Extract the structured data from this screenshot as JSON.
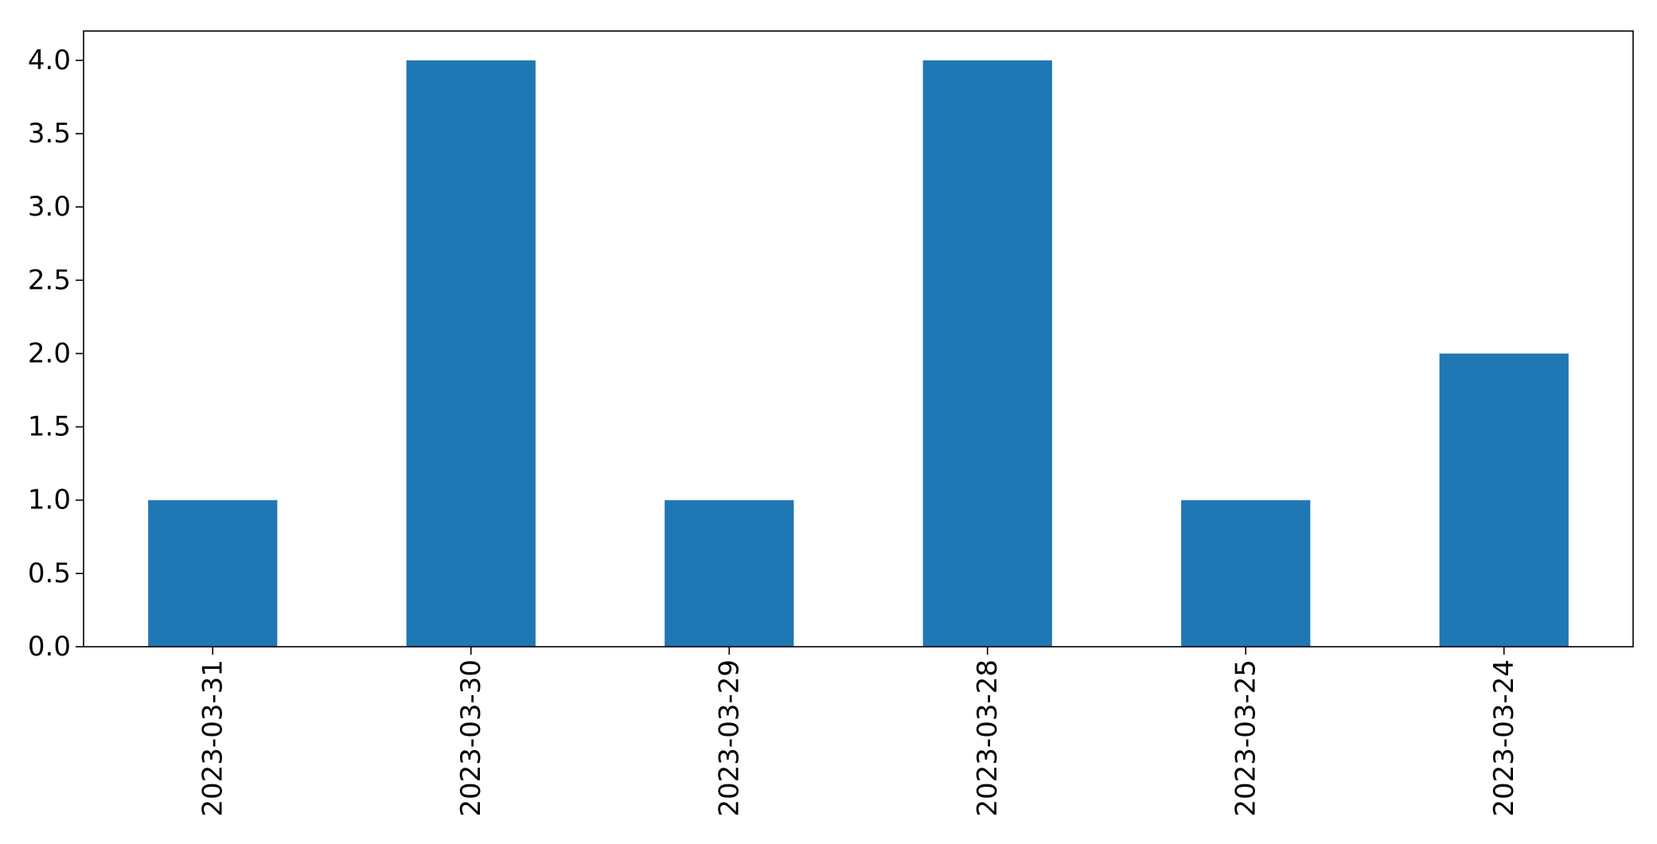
{
  "chart_data": {
    "type": "bar",
    "title": "",
    "xlabel": "",
    "ylabel": "",
    "categories": [
      "2023-03-31",
      "2023-03-30",
      "2023-03-29",
      "2023-03-28",
      "2023-03-25",
      "2023-03-24"
    ],
    "values": [
      1,
      4,
      1,
      4,
      1,
      2
    ],
    "ylim": [
      0,
      4.2
    ],
    "yticks": [
      "0.0",
      "0.5",
      "1.0",
      "1.5",
      "2.0",
      "2.5",
      "3.0",
      "3.5",
      "4.0"
    ],
    "grid": false,
    "legend": "none",
    "bar_color": "#1f77b4",
    "x_tick_rotation": "vertical"
  }
}
